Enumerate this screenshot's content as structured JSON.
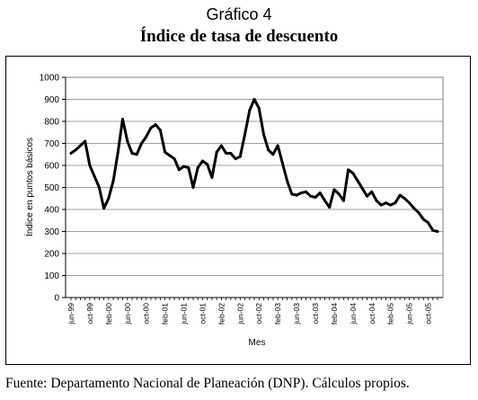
{
  "figure_label": "Gráfico 4",
  "chart_data": {
    "type": "line",
    "title": "Índice de tasa de descuento",
    "xlabel": "Mes",
    "ylabel": "Índice en puntos básicos",
    "ylim": [
      0,
      1000
    ],
    "yticks": [
      0,
      100,
      200,
      300,
      400,
      500,
      600,
      700,
      800,
      900,
      1000
    ],
    "grid": true,
    "legend": "none",
    "series_color": "#000000",
    "x_tick_labels": [
      "jun-99",
      "oct-99",
      "feb-00",
      "jun-00",
      "oct-00",
      "feb-01",
      "jun-01",
      "oct-01",
      "feb-02",
      "jun-02",
      "oct-02",
      "feb-03",
      "jun-03",
      "oct-03",
      "feb-04",
      "jun-04",
      "oct-04",
      "feb-05",
      "jun-05",
      "oct-05"
    ],
    "x": [
      "jun-99",
      "jul-99",
      "ago-99",
      "sep-99",
      "oct-99",
      "nov-99",
      "dic-99",
      "ene-00",
      "feb-00",
      "mar-00",
      "abr-00",
      "may-00",
      "jun-00",
      "jul-00",
      "ago-00",
      "sep-00",
      "oct-00",
      "nov-00",
      "dic-00",
      "ene-01",
      "feb-01",
      "mar-01",
      "abr-01",
      "may-01",
      "jun-01",
      "jul-01",
      "ago-01",
      "sep-01",
      "oct-01",
      "nov-01",
      "dic-01",
      "ene-02",
      "feb-02",
      "mar-02",
      "abr-02",
      "may-02",
      "jun-02",
      "jul-02",
      "ago-02",
      "sep-02",
      "oct-02",
      "nov-02",
      "dic-02",
      "ene-03",
      "feb-03",
      "mar-03",
      "abr-03",
      "may-03",
      "jun-03",
      "jul-03",
      "ago-03",
      "sep-03",
      "oct-03",
      "nov-03",
      "dic-03",
      "ene-04",
      "feb-04",
      "mar-04",
      "abr-04",
      "may-04",
      "jun-04",
      "jul-04",
      "ago-04",
      "sep-04",
      "oct-04",
      "nov-04",
      "dic-04",
      "ene-05",
      "feb-05",
      "mar-05",
      "abr-05",
      "may-05",
      "jun-05",
      "jul-05",
      "ago-05",
      "sep-05",
      "oct-05",
      "nov-05",
      "dic-05"
    ],
    "values": [
      655,
      670,
      690,
      710,
      600,
      550,
      500,
      405,
      450,
      530,
      660,
      810,
      710,
      655,
      650,
      700,
      730,
      770,
      785,
      760,
      660,
      645,
      630,
      580,
      595,
      590,
      500,
      590,
      620,
      605,
      545,
      660,
      690,
      655,
      655,
      630,
      640,
      740,
      850,
      900,
      860,
      740,
      670,
      650,
      690,
      610,
      530,
      470,
      465,
      475,
      480,
      460,
      455,
      475,
      440,
      410,
      490,
      470,
      440,
      580,
      565,
      530,
      495,
      460,
      480,
      440,
      420,
      430,
      420,
      430,
      465,
      450,
      430,
      405,
      385,
      355,
      340,
      305,
      300
    ]
  },
  "source": "Fuente: Departamento Nacional de Planeación (DNP). Cálculos propios."
}
